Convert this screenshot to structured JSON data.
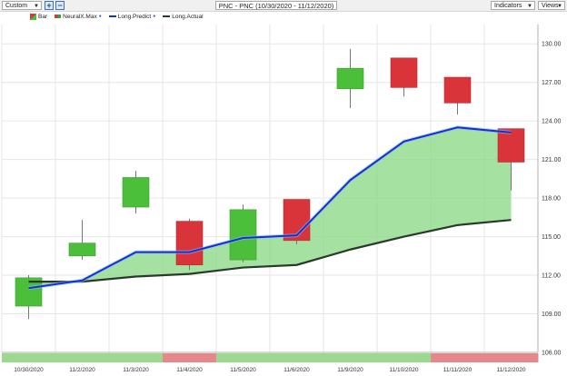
{
  "toolbar": {
    "layout_select": "Custom",
    "zoom_in": "+",
    "zoom_out": "−",
    "title": "PNC - PNC (10/30/2020 - 11/12/2020)",
    "indicators_label": "Indicators",
    "views_label": "Views"
  },
  "legend": {
    "bar": "Bar",
    "neuralx": "NeuralX.Max",
    "long_predict": "Long.Predict",
    "long_actual": "Long.Actual",
    "dot": "●"
  },
  "colors": {
    "up": "#4cbf3a",
    "down": "#d9343a",
    "predict": "#1133cc",
    "actual": "#2a3a2a",
    "fill": "#8fd98a",
    "band_green": "#9bd98f",
    "band_red": "#e6888a"
  },
  "chart_data": {
    "type": "candlestick",
    "categories": [
      "10/30/2020",
      "11/2/2020",
      "11/3/2020",
      "11/4/2020",
      "11/5/2020",
      "11/6/2020",
      "11/9/2020",
      "11/10/2020",
      "11/11/2020",
      "11/12/2020"
    ],
    "ohlc": [
      {
        "open": 109.6,
        "high": 112.0,
        "low": 108.6,
        "close": 111.8,
        "dir": "up"
      },
      {
        "open": 113.5,
        "high": 116.3,
        "low": 113.2,
        "close": 114.5,
        "dir": "up"
      },
      {
        "open": 117.3,
        "high": 120.1,
        "low": 116.8,
        "close": 119.6,
        "dir": "up"
      },
      {
        "open": 116.2,
        "high": 116.4,
        "low": 112.4,
        "close": 112.8,
        "dir": "down"
      },
      {
        "open": 113.2,
        "high": 117.5,
        "low": 113.0,
        "close": 117.1,
        "dir": "up"
      },
      {
        "open": 117.9,
        "high": 117.9,
        "low": 114.4,
        "close": 114.7,
        "dir": "down"
      },
      {
        "open": 126.5,
        "high": 129.6,
        "low": 125.0,
        "close": 128.1,
        "dir": "up"
      },
      {
        "open": 128.9,
        "high": 128.9,
        "low": 125.9,
        "close": 126.6,
        "dir": "down"
      },
      {
        "open": 127.4,
        "high": 127.4,
        "low": 124.5,
        "close": 125.4,
        "dir": "down"
      },
      {
        "open": 123.4,
        "high": 123.4,
        "low": 118.6,
        "close": 120.8,
        "dir": "down"
      }
    ],
    "series": [
      {
        "name": "Long.Predict",
        "values": [
          111.0,
          111.6,
          113.8,
          113.8,
          114.9,
          115.1,
          119.4,
          122.4,
          123.5,
          123.1
        ]
      },
      {
        "name": "Long.Actual",
        "values": [
          111.5,
          111.5,
          111.9,
          112.1,
          112.6,
          112.8,
          114.0,
          115.0,
          115.9,
          116.3
        ]
      }
    ],
    "neuralx_band": [
      "up",
      "up",
      "up",
      "down",
      "up",
      "up",
      "up",
      "up",
      "down",
      "down"
    ],
    "y_ticks": [
      "106.00",
      "109.00",
      "112.00",
      "115.00",
      "118.00",
      "121.00",
      "124.00",
      "127.00",
      "130.00"
    ],
    "ylim": [
      106,
      131.5
    ]
  }
}
